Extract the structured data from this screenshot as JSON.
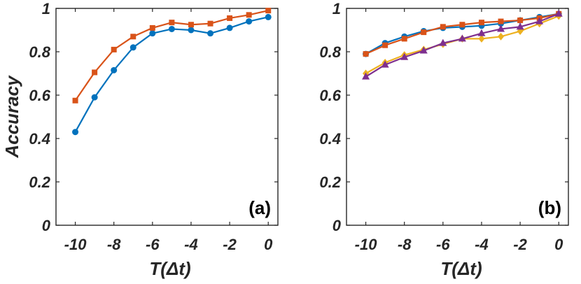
{
  "chart_data": [
    {
      "type": "line",
      "panel_label": "(a)",
      "xlabel": "T(Δt)",
      "ylabel": "Accuracy",
      "xlim": [
        -11,
        0.5
      ],
      "ylim": [
        0,
        1
      ],
      "xticks": [
        -10,
        -8,
        -6,
        -4,
        -2,
        0
      ],
      "xtick_labels": [
        "-10",
        "-8",
        "-6",
        "-4",
        "-2",
        "0"
      ],
      "yticks": [
        0,
        0.2,
        0.4,
        0.6,
        0.8,
        1
      ],
      "ytick_labels": [
        "0",
        "0.2",
        "0.4",
        "0.6",
        "0.8",
        "1"
      ],
      "x": [
        -10,
        -9,
        -8,
        -7,
        -6,
        -5,
        -4,
        -3,
        -2,
        -1,
        0
      ],
      "series": [
        {
          "name": "series-blue",
          "color": "#0072BD",
          "marker": "circle",
          "values": [
            0.43,
            0.59,
            0.715,
            0.82,
            0.885,
            0.905,
            0.9,
            0.885,
            0.91,
            0.94,
            0.96
          ]
        },
        {
          "name": "series-orange",
          "color": "#D95319",
          "marker": "square",
          "values": [
            0.575,
            0.705,
            0.81,
            0.87,
            0.91,
            0.935,
            0.925,
            0.93,
            0.955,
            0.97,
            0.99
          ]
        }
      ]
    },
    {
      "type": "line",
      "panel_label": "(b)",
      "xlabel": "T(Δt)",
      "ylabel": "",
      "xlim": [
        -11,
        0.5
      ],
      "ylim": [
        0,
        1
      ],
      "xticks": [
        -10,
        -8,
        -6,
        -4,
        -2,
        0
      ],
      "xtick_labels": [
        "-10",
        "-8",
        "-6",
        "-4",
        "-2",
        "0"
      ],
      "yticks": [
        0,
        0.2,
        0.4,
        0.6,
        0.8,
        1
      ],
      "ytick_labels": [
        "0",
        "0.2",
        "0.4",
        "0.6",
        "0.8",
        "1"
      ],
      "x": [
        -10,
        -9,
        -8,
        -7,
        -6,
        -5,
        -4,
        -3,
        -2,
        -1,
        0
      ],
      "series": [
        {
          "name": "series-blue",
          "color": "#0072BD",
          "marker": "circle",
          "values": [
            0.79,
            0.84,
            0.87,
            0.895,
            0.91,
            0.915,
            0.92,
            0.93,
            0.945,
            0.96,
            0.975
          ]
        },
        {
          "name": "series-orange",
          "color": "#D95319",
          "marker": "square",
          "values": [
            0.79,
            0.83,
            0.86,
            0.89,
            0.915,
            0.925,
            0.935,
            0.94,
            0.945,
            0.955,
            0.975
          ]
        },
        {
          "name": "series-yellow",
          "color": "#EDB120",
          "marker": "diamond",
          "values": [
            0.7,
            0.75,
            0.785,
            0.81,
            0.835,
            0.86,
            0.86,
            0.87,
            0.895,
            0.93,
            0.965
          ]
        },
        {
          "name": "series-purple",
          "color": "#7E2F8E",
          "marker": "triangle",
          "values": [
            0.685,
            0.74,
            0.775,
            0.805,
            0.84,
            0.86,
            0.885,
            0.905,
            0.915,
            0.94,
            0.975
          ]
        }
      ]
    }
  ]
}
